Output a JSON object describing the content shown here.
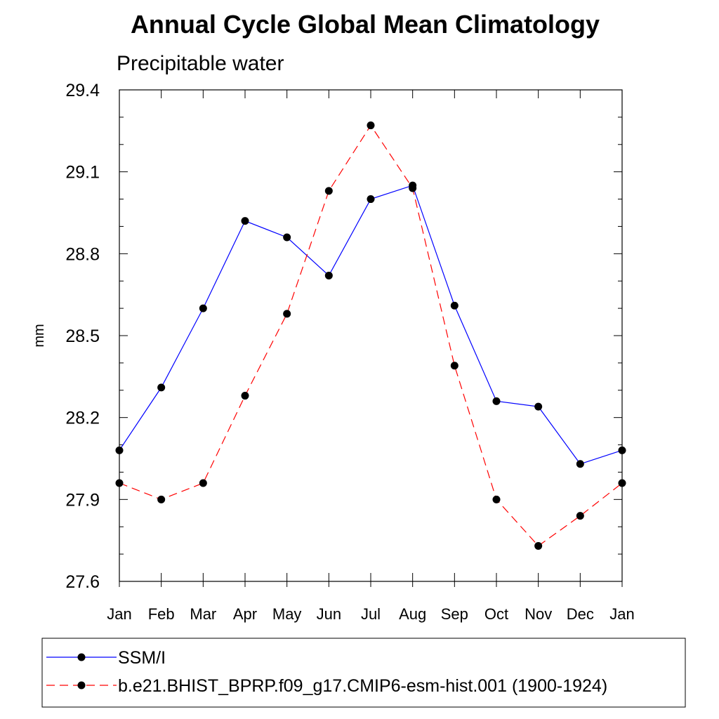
{
  "chart_data": {
    "type": "line",
    "title": "Annual Cycle Global Mean Climatology",
    "subtitle": "Precipitable water",
    "xlabel": "",
    "ylabel": "mm",
    "categories": [
      "Jan",
      "Feb",
      "Mar",
      "Apr",
      "May",
      "Jun",
      "Jul",
      "Aug",
      "Sep",
      "Oct",
      "Nov",
      "Dec",
      "Jan"
    ],
    "ylim": [
      27.6,
      29.4
    ],
    "yticks": [
      "27.6",
      "27.9",
      "28.2",
      "28.5",
      "28.8",
      "29.1",
      "29.4"
    ],
    "grid": false,
    "legend_position": "bottom",
    "series": [
      {
        "name": "SSM/I",
        "color": "#0000ff",
        "line_style": "solid",
        "marker": "filled-circle",
        "values": [
          28.08,
          28.31,
          28.6,
          28.92,
          28.86,
          28.72,
          29.0,
          29.05,
          28.61,
          28.26,
          28.24,
          28.03,
          28.08
        ]
      },
      {
        "name": "b.e21.BHIST_BPRP.f09_g17.CMIP6-esm-hist.001 (1900-1924)",
        "color": "#ff0000",
        "line_style": "dashed",
        "marker": "filled-circle",
        "values": [
          27.96,
          27.9,
          27.96,
          28.28,
          28.58,
          29.03,
          29.27,
          29.04,
          28.39,
          27.9,
          27.73,
          27.84,
          27.96
        ]
      }
    ]
  }
}
